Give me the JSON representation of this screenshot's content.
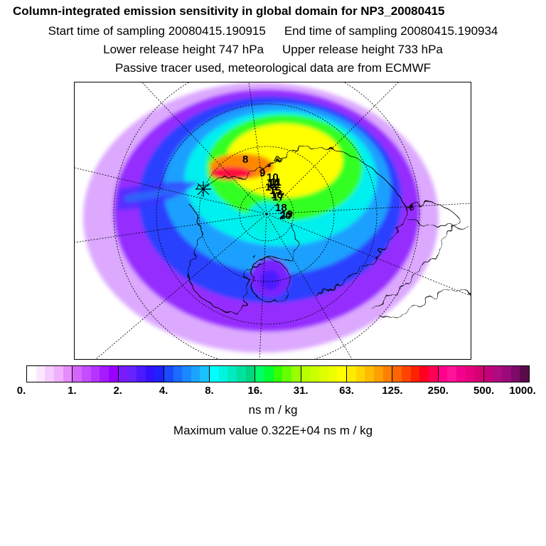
{
  "title": "Column-integrated emission sensitivity in global domain for NP3_20080415",
  "sampling": {
    "start": "Start time of sampling 20080415.190915",
    "end": "End time of sampling 20080415.190934"
  },
  "release": {
    "lower": "Lower release height  747 hPa",
    "upper": "Upper release height  733 hPa"
  },
  "note": "Passive tracer used, meteorological data are from ECMWF",
  "colorbar": {
    "tick_labels": [
      "0.",
      "1.",
      "2.",
      "4.",
      "8.",
      "16.",
      "31.",
      "63.",
      "125.",
      "250.",
      "500.",
      "1000."
    ],
    "colors": [
      "#ffffff",
      "#fbe8ff",
      "#f5ccff",
      "#eeb0ff",
      "#e68cff",
      "#d466ff",
      "#c54cff",
      "#b733ff",
      "#a61aff",
      "#9900ff",
      "#7a1aff",
      "#6622ff",
      "#4b1aff",
      "#3311ff",
      "#2020ff",
      "#1a4cff",
      "#1a6cff",
      "#1a88ff",
      "#1aa4ff",
      "#1ac2ff",
      "#00ffff",
      "#00f5e0",
      "#00ebc0",
      "#00e0a0",
      "#00d680",
      "#00ff66",
      "#00ff33",
      "#33ff00",
      "#66ff00",
      "#99ff00",
      "#b8ff00",
      "#ccff00",
      "#ddff00",
      "#eeff00",
      "#ffff00",
      "#ffea00",
      "#ffd500",
      "#ffbb00",
      "#ff9e00",
      "#ff7f00",
      "#ff6600",
      "#ff4400",
      "#ff2200",
      "#ff0022",
      "#ff0055",
      "#ff0088",
      "#ff1499",
      "#f5008c",
      "#e6007f",
      "#d60073",
      "#c4007a",
      "#b00a80",
      "#9a0a7a",
      "#800a6a",
      "#5a0a4a"
    ],
    "units": "ns m / kg"
  },
  "maximum": "Maximum value  0.322E+04 ns m / kg",
  "map": {
    "projection": "north-polar-stereographic",
    "track_labels": [
      "8",
      "9",
      "10",
      "11",
      "12",
      "13",
      "14",
      "15",
      "16",
      "17",
      "18",
      "19",
      "20"
    ],
    "release_marker": "star-cross"
  }
}
